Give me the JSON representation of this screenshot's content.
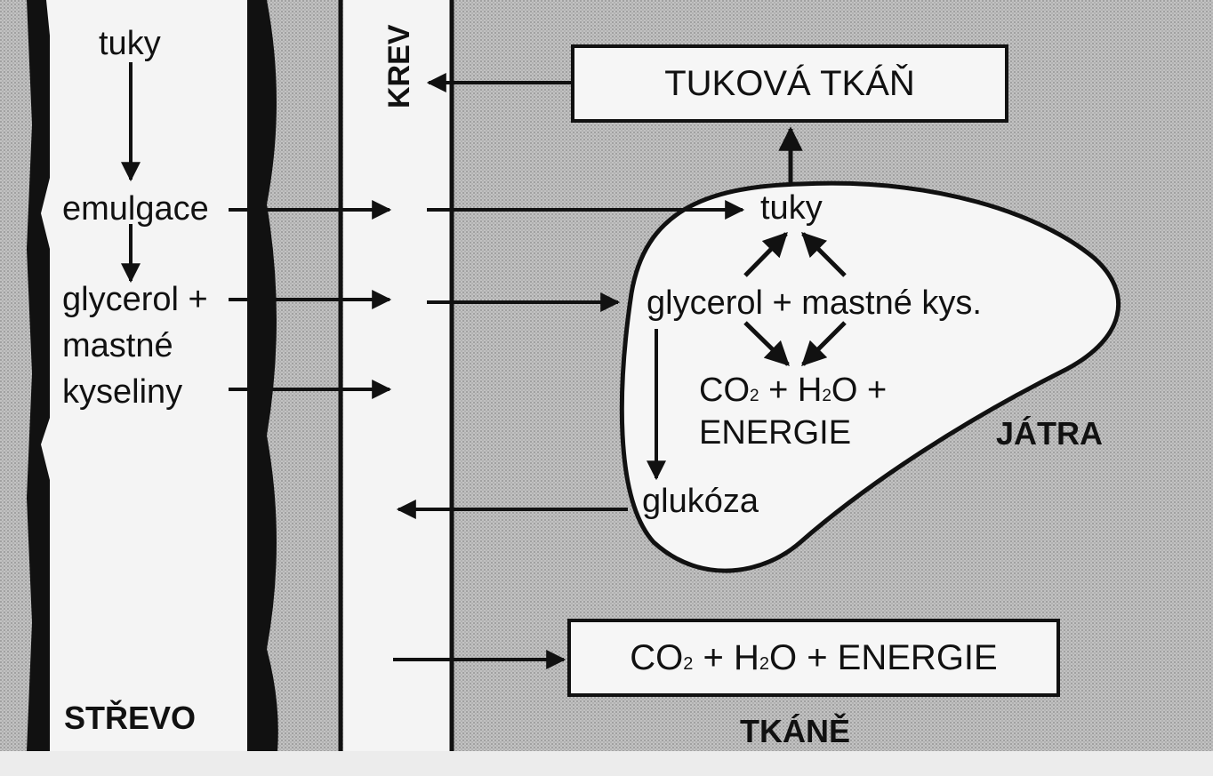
{
  "intestine": {
    "step1": "tuky",
    "step2": "emulgace",
    "step3_line1": "glycerol +",
    "step3_line2": "mastné",
    "step3_line3": "kyseliny",
    "label": "STŘEVO"
  },
  "blood": {
    "label": "KREV"
  },
  "adipose": {
    "label": "TUKOVÁ TKÁŇ"
  },
  "liver": {
    "fats": "tuky",
    "glycerol_fa": "glycerol + mastné kys.",
    "co2_text": "CO",
    "co2_sub": "2",
    "h2o_pre": " + H",
    "h2o_sub": "2",
    "h2o_post": "O +",
    "energy": "ENERGIE",
    "glucose": "glukóza",
    "label": "JÁTRA"
  },
  "tissues": {
    "co2_text": "CO",
    "co2_sub": "2",
    "h2o_pre": " + H",
    "h2o_sub": "2",
    "h2o_post": "O + ENERGIE",
    "label": "TKÁNĚ"
  },
  "colors": {
    "background": "#b9b9b9",
    "panel": "#f4f4f4",
    "ink": "#111111"
  }
}
